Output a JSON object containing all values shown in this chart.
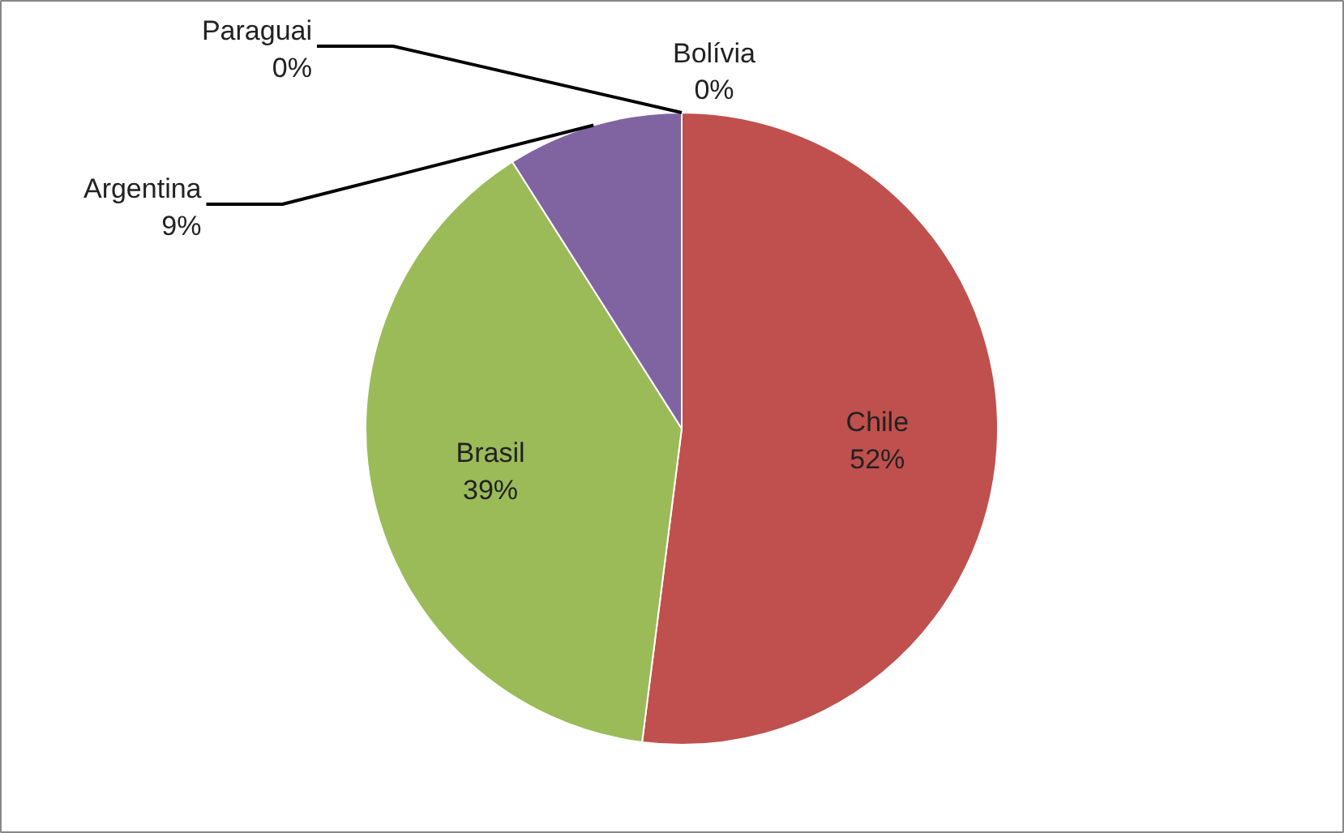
{
  "chart_data": {
    "type": "pie",
    "categories": [
      "Bolívia",
      "Chile",
      "Brasil",
      "Argentina",
      "Paraguai"
    ],
    "values": [
      0,
      52,
      39,
      9,
      0
    ],
    "colors": [
      "#4f81bd",
      "#c0504d",
      "#9bbb59",
      "#8064a2",
      "#4bacc6"
    ],
    "value_labels": [
      "0%",
      "52%",
      "39%",
      "9%",
      "0%"
    ]
  }
}
